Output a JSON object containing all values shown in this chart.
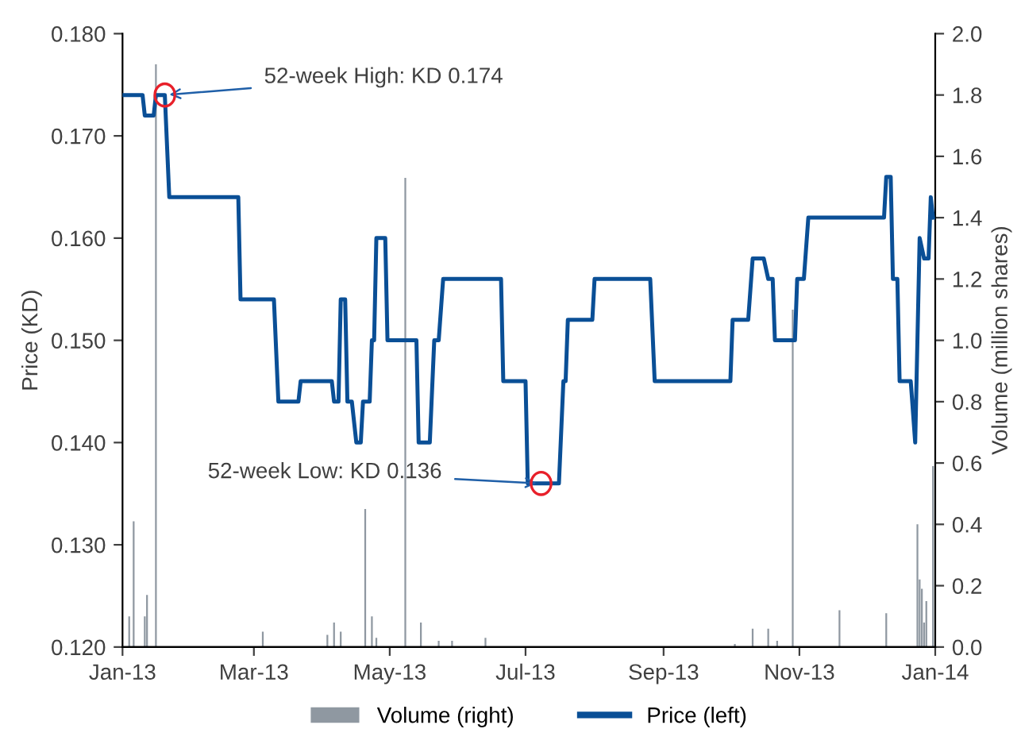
{
  "chart_data": {
    "type": "line",
    "ylabel": "Price (KD)",
    "y2label": "Volume (million shares)",
    "xlim": [
      "2013-01-01",
      "2014-01-01"
    ],
    "xticks": [
      {
        "value": "2013-01-01",
        "label": "Jan-13"
      },
      {
        "value": "2013-03-01",
        "label": "Mar-13"
      },
      {
        "value": "2013-05-01",
        "label": "May-13"
      },
      {
        "value": "2013-07-01",
        "label": "Jul-13"
      },
      {
        "value": "2013-09-01",
        "label": "Sep-13"
      },
      {
        "value": "2013-11-01",
        "label": "Nov-13"
      },
      {
        "value": "2014-01-01",
        "label": "Jan-14"
      }
    ],
    "ylim": [
      0.12,
      0.18
    ],
    "yticks": [
      {
        "value": 0.12,
        "label": "0.120"
      },
      {
        "value": 0.13,
        "label": "0.130"
      },
      {
        "value": 0.14,
        "label": "0.140"
      },
      {
        "value": 0.15,
        "label": "0.150"
      },
      {
        "value": 0.16,
        "label": "0.160"
      },
      {
        "value": 0.17,
        "label": "0.170"
      },
      {
        "value": 0.18,
        "label": "0.180"
      }
    ],
    "y2lim": [
      0,
      2
    ],
    "y2ticks": [
      {
        "value": 0,
        "label": "0.0"
      },
      {
        "value": 0.2,
        "label": "0.2"
      },
      {
        "value": 0.4,
        "label": "0.4"
      },
      {
        "value": 0.6,
        "label": "0.6"
      },
      {
        "value": 0.8,
        "label": "0.8"
      },
      {
        "value": 1,
        "label": "1.0"
      },
      {
        "value": 1.2,
        "label": "1.2"
      },
      {
        "value": 1.4,
        "label": "1.4"
      },
      {
        "value": 1.6,
        "label": "1.6"
      },
      {
        "value": 1.8,
        "label": "1.8"
      },
      {
        "value": 2,
        "label": "2.0"
      }
    ],
    "grid": false,
    "legend": "bottom",
    "series": [
      {
        "name": "Volume (right)",
        "type": "bar",
        "axis": "y2",
        "color": "#8f98a1",
        "x": [
          "2013-01-04",
          "2013-01-06",
          "2013-01-11",
          "2013-01-12",
          "2013-01-16",
          "2013-03-05",
          "2013-04-03",
          "2013-04-06",
          "2013-04-09",
          "2013-04-20",
          "2013-04-23",
          "2013-04-25",
          "2013-05-08",
          "2013-05-15",
          "2013-05-23",
          "2013-05-29",
          "2013-06-13",
          "2013-10-03",
          "2013-10-11",
          "2013-10-18",
          "2013-10-22",
          "2013-10-29",
          "2013-11-19",
          "2013-12-10",
          "2013-12-24",
          "2013-12-25",
          "2013-12-26",
          "2013-12-27",
          "2013-12-28",
          "2013-12-31"
        ],
        "values": [
          0.1,
          0.41,
          0.1,
          0.17,
          1.9,
          0.05,
          0.04,
          0.08,
          0.05,
          0.45,
          0.1,
          0.03,
          1.53,
          0.08,
          0.02,
          0.02,
          0.03,
          0.01,
          0.06,
          0.06,
          0.02,
          1.1,
          0.12,
          0.11,
          0.4,
          0.22,
          0.19,
          0.08,
          0.15,
          0.59
        ]
      },
      {
        "name": "Price (left)",
        "axis": "y",
        "color": "#0a4f96",
        "x": [
          "2013-01-01",
          "2013-01-10",
          "2013-01-11",
          "2013-01-15",
          "2013-01-16",
          "2013-01-20",
          "2013-01-22",
          "2013-02-22",
          "2013-02-23",
          "2013-03-10",
          "2013-03-12",
          "2013-03-21",
          "2013-03-22",
          "2013-04-05",
          "2013-04-06",
          "2013-04-08",
          "2013-04-09",
          "2013-04-11",
          "2013-04-12",
          "2013-04-14",
          "2013-04-16",
          "2013-04-18",
          "2013-04-19",
          "2013-04-22",
          "2013-04-23",
          "2013-04-24",
          "2013-04-25",
          "2013-04-29",
          "2013-04-30",
          "2013-05-13",
          "2013-05-14",
          "2013-05-19",
          "2013-05-21",
          "2013-05-23",
          "2013-05-25",
          "2013-06-20",
          "2013-06-21",
          "2013-07-01",
          "2013-07-02",
          "2013-07-16",
          "2013-07-18",
          "2013-07-19",
          "2013-07-20",
          "2013-07-31",
          "2013-08-01",
          "2013-08-26",
          "2013-08-28",
          "2013-10-01",
          "2013-10-02",
          "2013-10-09",
          "2013-10-11",
          "2013-10-16",
          "2013-10-18",
          "2013-10-20",
          "2013-10-21",
          "2013-10-30",
          "2013-10-31",
          "2013-11-03",
          "2013-11-05",
          "2013-12-09",
          "2013-12-10",
          "2013-12-12",
          "2013-12-13",
          "2013-12-15",
          "2013-12-16",
          "2013-12-21",
          "2013-12-23",
          "2013-12-25",
          "2013-12-27",
          "2013-12-29",
          "2013-12-30",
          "2013-12-31"
        ],
        "values": [
          0.174,
          0.174,
          0.172,
          0.172,
          0.174,
          0.174,
          0.164,
          0.164,
          0.154,
          0.154,
          0.144,
          0.144,
          0.146,
          0.146,
          0.144,
          0.144,
          0.154,
          0.154,
          0.144,
          0.144,
          0.14,
          0.14,
          0.144,
          0.144,
          0.15,
          0.15,
          0.16,
          0.16,
          0.15,
          0.15,
          0.14,
          0.14,
          0.15,
          0.15,
          0.156,
          0.156,
          0.146,
          0.146,
          0.136,
          0.136,
          0.146,
          0.146,
          0.152,
          0.152,
          0.156,
          0.156,
          0.146,
          0.146,
          0.152,
          0.152,
          0.158,
          0.158,
          0.156,
          0.156,
          0.15,
          0.15,
          0.156,
          0.156,
          0.162,
          0.162,
          0.166,
          0.166,
          0.156,
          0.156,
          0.146,
          0.146,
          0.14,
          0.16,
          0.158,
          0.158,
          0.164,
          0.162
        ]
      }
    ],
    "annotations": [
      {
        "text": "52-week High: KD 0.174",
        "x": "2013-01-20",
        "y": 0.174
      },
      {
        "text": "52-week Low: KD 0.136",
        "x": "2013-07-08",
        "y": 0.136
      }
    ]
  }
}
